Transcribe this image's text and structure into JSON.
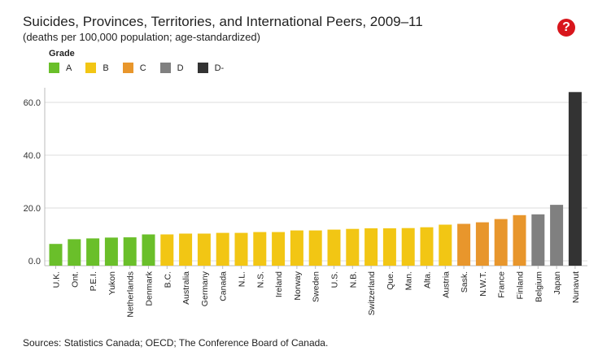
{
  "header": {
    "title": "Suicides, Provinces, Territories, and International Peers, 2009–11",
    "subtitle": "(deaths per 100,000 population; age-standardized)",
    "help_label": "?"
  },
  "legend": {
    "title": "Grade",
    "items": [
      {
        "label": "A",
        "color": "#6abf2a"
      },
      {
        "label": "B",
        "color": "#f2c614"
      },
      {
        "label": "C",
        "color": "#e8962c"
      },
      {
        "label": "D",
        "color": "#808080"
      },
      {
        "label": "D-",
        "color": "#333333"
      }
    ]
  },
  "chart_data": {
    "type": "bar",
    "categories": [
      "U.K.",
      "Ont.",
      "P.E.I.",
      "Yukon",
      "Netherlands",
      "Denmark",
      "B.C.",
      "Australia",
      "Germany",
      "Canada",
      "N.L.",
      "N.S.",
      "Ireland",
      "Norway",
      "Sweden",
      "U.S.",
      "N.B.",
      "Switzerland",
      "Que.",
      "Man.",
      "Alta.",
      "Austria",
      "Sask.",
      "N.W.T.",
      "France",
      "Finland",
      "Belgium",
      "Japan",
      "Nunavut"
    ],
    "values": [
      6.4,
      8.2,
      8.5,
      8.8,
      8.9,
      10.0,
      10.0,
      10.3,
      10.3,
      10.6,
      10.6,
      10.9,
      10.9,
      11.5,
      11.5,
      11.8,
      12.1,
      12.3,
      12.3,
      12.4,
      12.7,
      13.7,
      14.0,
      14.6,
      15.8,
      17.3,
      17.6,
      21.2,
      63.9
    ],
    "grades": [
      "A",
      "A",
      "A",
      "A",
      "A",
      "A",
      "B",
      "B",
      "B",
      "B",
      "B",
      "B",
      "B",
      "B",
      "B",
      "B",
      "B",
      "B",
      "B",
      "B",
      "B",
      "B",
      "C",
      "C",
      "C",
      "C",
      "D",
      "D",
      "D-"
    ],
    "yticks": [
      "0.0",
      "20.0",
      "40.0",
      "60.0"
    ],
    "ylim": [
      0,
      64
    ],
    "grid": true,
    "legend_position": "top-left"
  },
  "footer": {
    "source": "Sources: Statistics Canada; OECD; The Conference Board of Canada."
  }
}
